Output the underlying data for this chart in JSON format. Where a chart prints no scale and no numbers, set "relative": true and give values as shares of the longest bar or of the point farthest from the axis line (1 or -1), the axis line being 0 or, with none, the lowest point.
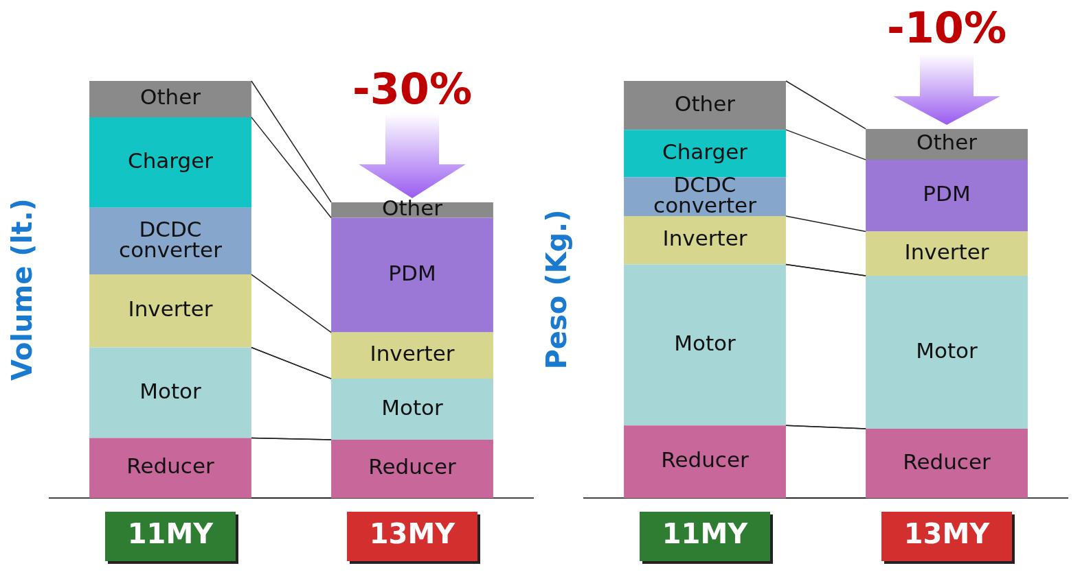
{
  "chart_data": [
    {
      "type": "bar",
      "stacked": true,
      "relative": true,
      "ylabel": "Volume (lt.)",
      "categories": [
        "11MY",
        "13MY"
      ],
      "annotations": [
        "-30%"
      ],
      "series": [
        {
          "name": "Reducer",
          "color": "#c8689a",
          "values": [
            0.144,
            0.14
          ]
        },
        {
          "name": "Motor",
          "color": "#a6d6d6",
          "values": [
            0.217,
            0.146
          ]
        },
        {
          "name": "Inverter",
          "color": "#d6d68e",
          "values": [
            0.175,
            0.111
          ]
        },
        {
          "name": "DCDC converter",
          "color": "#86a6cc",
          "values": [
            0.16,
            null
          ]
        },
        {
          "name": "Charger",
          "color": "#12c4c4",
          "values": [
            0.217,
            null
          ]
        },
        {
          "name": "PDM",
          "color": "#9c78d6",
          "values": [
            null,
            0.275
          ]
        },
        {
          "name": "Other",
          "color": "#8a8a8a",
          "values": [
            0.087,
            0.037
          ]
        }
      ]
    },
    {
      "type": "bar",
      "stacked": true,
      "relative": true,
      "ylabel": "Peso (Kg.)",
      "categories": [
        "11MY",
        "13MY"
      ],
      "annotations": [
        "-10%"
      ],
      "series": [
        {
          "name": "Reducer",
          "color": "#c8689a",
          "values": [
            0.174,
            0.166
          ]
        },
        {
          "name": "Motor",
          "color": "#a6d6d6",
          "values": [
            0.386,
            0.367
          ]
        },
        {
          "name": "Inverter",
          "color": "#d6d68e",
          "values": [
            0.116,
            0.106
          ]
        },
        {
          "name": "DCDC converter",
          "color": "#86a6cc",
          "values": [
            0.093,
            null
          ]
        },
        {
          "name": "Charger",
          "color": "#12c4c4",
          "values": [
            0.114,
            null
          ]
        },
        {
          "name": "PDM",
          "color": "#9c78d6",
          "values": [
            null,
            0.172
          ]
        },
        {
          "name": "Other",
          "color": "#8a8a8a",
          "values": [
            0.117,
            0.074
          ]
        }
      ]
    }
  ]
}
